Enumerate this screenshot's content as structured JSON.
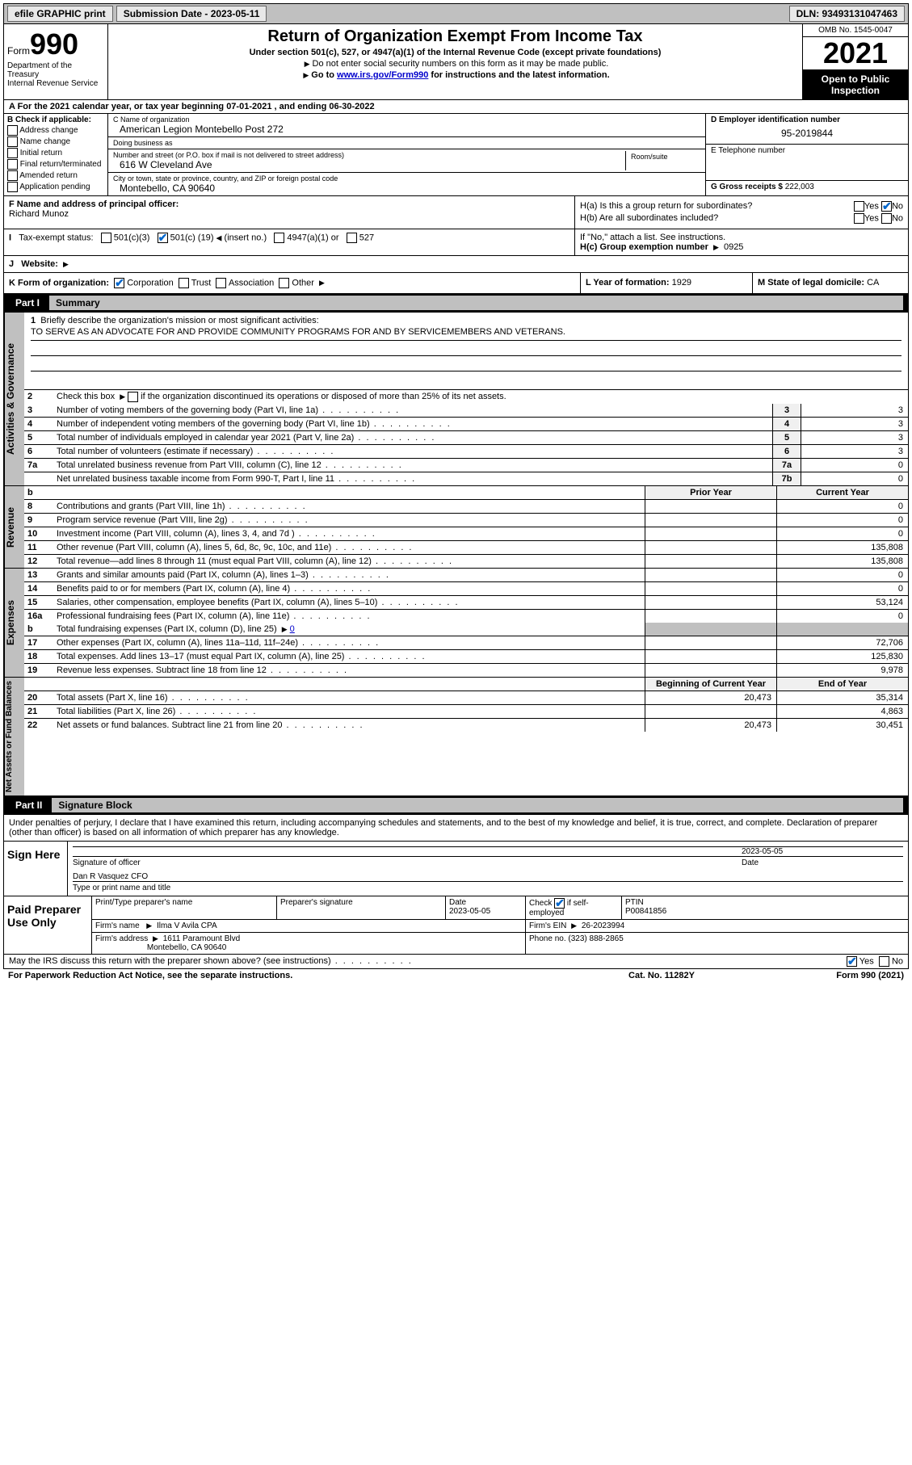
{
  "topbar": {
    "efile": "efile GRAPHIC print",
    "submission": "Submission Date - 2023-05-11",
    "dln": "DLN: 93493131047463"
  },
  "header": {
    "form_prefix": "Form",
    "form_number": "990",
    "dept": "Department of the Treasury",
    "irs": "Internal Revenue Service",
    "title": "Return of Organization Exempt From Income Tax",
    "subtitle": "Under section 501(c), 527, or 4947(a)(1) of the Internal Revenue Code (except private foundations)",
    "note1": "Do not enter social security numbers on this form as it may be made public.",
    "note2_pre": "Go to ",
    "note2_link": "www.irs.gov/Form990",
    "note2_post": " for instructions and the latest information.",
    "omb": "OMB No. 1545-0047",
    "year": "2021",
    "inspect": "Open to Public Inspection"
  },
  "row_a": {
    "text": "A For the 2021 calendar year, or tax year beginning 07-01-2021   , and ending 06-30-2022"
  },
  "col_b": {
    "header": "B Check if applicable:",
    "opts": [
      "Address change",
      "Name change",
      "Initial return",
      "Final return/terminated",
      "Amended return",
      "Application pending"
    ]
  },
  "col_c": {
    "name_lbl": "C Name of organization",
    "name_val": "American Legion Montebello Post 272",
    "dba_lbl": "Doing business as",
    "dba_val": "",
    "addr_lbl": "Number and street (or P.O. box if mail is not delivered to street address)",
    "addr_val": "616 W Cleveland Ave",
    "room_lbl": "Room/suite",
    "city_lbl": "City or town, state or province, country, and ZIP or foreign postal code",
    "city_val": "Montebello, CA  90640"
  },
  "col_de": {
    "d_lbl": "D Employer identification number",
    "d_val": "95-2019844",
    "e_lbl": "E Telephone number",
    "e_val": "",
    "g_lbl": "G Gross receipts $",
    "g_val": "222,003"
  },
  "col_f": {
    "lbl": "F Name and address of principal officer:",
    "val": "Richard Munoz"
  },
  "col_h": {
    "a_lbl": "H(a)  Is this a group return for subordinates?",
    "a_yes": "Yes",
    "a_no": "No",
    "b_lbl": "H(b)  Are all subordinates included?",
    "b_yes": "Yes",
    "b_no": "No",
    "b_note": "If \"No,\" attach a list. See instructions.",
    "c_lbl": "H(c)  Group exemption number",
    "c_val": "0925"
  },
  "row_i": {
    "lbl": "Tax-exempt status:",
    "o1": "501(c)(3)",
    "o2_pre": "501(c) (",
    "o2_val": "19",
    "o2_post": ") ",
    "o2_insert": "(insert no.)",
    "o3": "4947(a)(1) or",
    "o4": "527"
  },
  "row_j": {
    "lbl": "Website:",
    "val": ""
  },
  "row_k": {
    "lbl": "K Form of organization:",
    "o1": "Corporation",
    "o2": "Trust",
    "o3": "Association",
    "o4": "Other"
  },
  "row_l": {
    "lbl": "L Year of formation:",
    "val": "1929"
  },
  "row_m": {
    "lbl": "M State of legal domicile:",
    "val": "CA"
  },
  "part1": {
    "part": "Part I",
    "title": "Summary",
    "side1": "Activities & Governance",
    "side2": "Revenue",
    "side3": "Expenses",
    "side4": "Net Assets or Fund Balances",
    "line1_lbl": "Briefly describe the organization's mission or most significant activities:",
    "line1_val": "TO SERVE AS AN ADVOCATE FOR AND PROVIDE COMMUNITY PROGRAMS FOR AND BY SERVICEMEMBERS AND VETERANS.",
    "line2": "Check this box    if the organization discontinued its operations or disposed of more than 25% of its net assets.",
    "lines_a": [
      {
        "n": "3",
        "d": "Number of voting members of the governing body (Part VI, line 1a)",
        "bn": "3",
        "v": "3"
      },
      {
        "n": "4",
        "d": "Number of independent voting members of the governing body (Part VI, line 1b)",
        "bn": "4",
        "v": "3"
      },
      {
        "n": "5",
        "d": "Total number of individuals employed in calendar year 2021 (Part V, line 2a)",
        "bn": "5",
        "v": "3"
      },
      {
        "n": "6",
        "d": "Total number of volunteers (estimate if necessary)",
        "bn": "6",
        "v": "3"
      },
      {
        "n": "7a",
        "d": "Total unrelated business revenue from Part VIII, column (C), line 12",
        "bn": "7a",
        "v": "0"
      },
      {
        "n": "",
        "d": "Net unrelated business taxable income from Form 990-T, Part I, line 11",
        "bn": "7b",
        "v": "0"
      }
    ],
    "hdr_b": "b",
    "hdr_prior": "Prior Year",
    "hdr_current": "Current Year",
    "lines_rev": [
      {
        "n": "8",
        "d": "Contributions and grants (Part VIII, line 1h)",
        "p": "",
        "c": "0"
      },
      {
        "n": "9",
        "d": "Program service revenue (Part VIII, line 2g)",
        "p": "",
        "c": "0"
      },
      {
        "n": "10",
        "d": "Investment income (Part VIII, column (A), lines 3, 4, and 7d )",
        "p": "",
        "c": "0"
      },
      {
        "n": "11",
        "d": "Other revenue (Part VIII, column (A), lines 5, 6d, 8c, 9c, 10c, and 11e)",
        "p": "",
        "c": "135,808"
      },
      {
        "n": "12",
        "d": "Total revenue—add lines 8 through 11 (must equal Part VIII, column (A), line 12)",
        "p": "",
        "c": "135,808"
      }
    ],
    "lines_exp": [
      {
        "n": "13",
        "d": "Grants and similar amounts paid (Part IX, column (A), lines 1–3)",
        "p": "",
        "c": "0"
      },
      {
        "n": "14",
        "d": "Benefits paid to or for members (Part IX, column (A), line 4)",
        "p": "",
        "c": "0"
      },
      {
        "n": "15",
        "d": "Salaries, other compensation, employee benefits (Part IX, column (A), lines 5–10)",
        "p": "",
        "c": "53,124"
      },
      {
        "n": "16a",
        "d": "Professional fundraising fees (Part IX, column (A), line 11e)",
        "p": "",
        "c": "0"
      }
    ],
    "line16b_n": "b",
    "line16b_d_pre": "Total fundraising expenses (Part IX, column (D), line 25) ",
    "line16b_val": "0",
    "lines_exp2": [
      {
        "n": "17",
        "d": "Other expenses (Part IX, column (A), lines 11a–11d, 11f–24e)",
        "p": "",
        "c": "72,706"
      },
      {
        "n": "18",
        "d": "Total expenses. Add lines 13–17 (must equal Part IX, column (A), line 25)",
        "p": "",
        "c": "125,830"
      },
      {
        "n": "19",
        "d": "Revenue less expenses. Subtract line 18 from line 12",
        "p": "",
        "c": "9,978"
      }
    ],
    "hdr_begin": "Beginning of Current Year",
    "hdr_end": "End of Year",
    "lines_net": [
      {
        "n": "20",
        "d": "Total assets (Part X, line 16)",
        "p": "20,473",
        "c": "35,314"
      },
      {
        "n": "21",
        "d": "Total liabilities (Part X, line 26)",
        "p": "",
        "c": "4,863"
      },
      {
        "n": "22",
        "d": "Net assets or fund balances. Subtract line 21 from line 20",
        "p": "20,473",
        "c": "30,451"
      }
    ]
  },
  "part2": {
    "part": "Part II",
    "title": "Signature Block",
    "penalties": "Under penalties of perjury, I declare that I have examined this return, including accompanying schedules and statements, and to the best of my knowledge and belief, it is true, correct, and complete. Declaration of preparer (other than officer) is based on all information of which preparer has any knowledge.",
    "sign_here": "Sign Here",
    "sig_officer_lbl": "Signature of officer",
    "sig_date": "2023-05-05",
    "sig_date_lbl": "Date",
    "sig_name": "Dan R Vasquez CFO",
    "sig_name_lbl": "Type or print name and title",
    "paid_prep": "Paid Preparer Use Only",
    "prep_name_lbl": "Print/Type preparer's name",
    "prep_sig_lbl": "Preparer's signature",
    "prep_date_lbl": "Date",
    "prep_date": "2023-05-05",
    "prep_check_lbl": "Check      if self-employed",
    "ptin_lbl": "PTIN",
    "ptin_val": "P00841856",
    "firm_name_lbl": "Firm's name",
    "firm_name": "Ilma V Avila CPA",
    "firm_ein_lbl": "Firm's EIN",
    "firm_ein": "26-2023994",
    "firm_addr_lbl": "Firm's address",
    "firm_addr1": "1611 Paramount Blvd",
    "firm_addr2": "Montebello, CA  90640",
    "phone_lbl": "Phone no.",
    "phone": "(323) 888-2865",
    "discuss": "May the IRS discuss this return with the preparer shown above? (see instructions)",
    "yes": "Yes",
    "no": "No"
  },
  "footer": {
    "paperwork": "For Paperwork Reduction Act Notice, see the separate instructions.",
    "cat": "Cat. No. 11282Y",
    "form": "Form 990 (2021)"
  }
}
